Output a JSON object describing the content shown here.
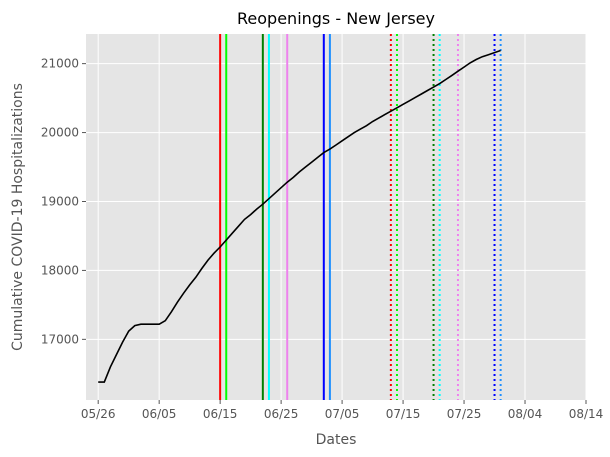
{
  "chart_data": {
    "type": "line",
    "title": "Reopenings - New Jersey",
    "xlabel": "Dates",
    "ylabel": "Cumulative COVID-19 Hospitalizations",
    "style": "ggplot",
    "grid": true,
    "x_axis": {
      "type": "date",
      "ticks": [
        "2020-05-26",
        "2020-06-05",
        "2020-06-15",
        "2020-06-25",
        "2020-07-05",
        "2020-07-15",
        "2020-07-25",
        "2020-08-04",
        "2020-08-14"
      ],
      "tick_labels": [
        "05/26",
        "06/05",
        "06/15",
        "06/25",
        "07/05",
        "07/15",
        "07/25",
        "08/04",
        "08/14"
      ],
      "range": [
        "2020-05-24",
        "2020-08-14"
      ]
    },
    "y_axis": {
      "ticks": [
        17000,
        18000,
        19000,
        20000,
        21000
      ],
      "tick_labels": [
        "17000",
        "18000",
        "19000",
        "20000",
        "21000"
      ],
      "range": [
        16120,
        21430
      ]
    },
    "series": [
      {
        "color": "#000000",
        "points": [
          [
            "2020-05-26",
            16380
          ],
          [
            "2020-05-27",
            16380
          ],
          [
            "2020-05-28",
            16600
          ],
          [
            "2020-05-29",
            16780
          ],
          [
            "2020-05-30",
            16960
          ],
          [
            "2020-05-31",
            17120
          ],
          [
            "2020-06-01",
            17200
          ],
          [
            "2020-06-02",
            17220
          ],
          [
            "2020-06-03",
            17220
          ],
          [
            "2020-06-04",
            17220
          ],
          [
            "2020-06-05",
            17220
          ],
          [
            "2020-06-06",
            17270
          ],
          [
            "2020-06-07",
            17400
          ],
          [
            "2020-06-08",
            17540
          ],
          [
            "2020-06-09",
            17670
          ],
          [
            "2020-06-10",
            17790
          ],
          [
            "2020-06-11",
            17900
          ],
          [
            "2020-06-12",
            18030
          ],
          [
            "2020-06-13",
            18150
          ],
          [
            "2020-06-14",
            18250
          ],
          [
            "2020-06-15",
            18340
          ],
          [
            "2020-06-16",
            18440
          ],
          [
            "2020-06-17",
            18540
          ],
          [
            "2020-06-18",
            18640
          ],
          [
            "2020-06-19",
            18740
          ],
          [
            "2020-06-20",
            18810
          ],
          [
            "2020-06-21",
            18890
          ],
          [
            "2020-06-22",
            18960
          ],
          [
            "2020-06-23",
            19040
          ],
          [
            "2020-06-24",
            19120
          ],
          [
            "2020-06-25",
            19200
          ],
          [
            "2020-06-26",
            19280
          ],
          [
            "2020-06-27",
            19350
          ],
          [
            "2020-06-28",
            19430
          ],
          [
            "2020-06-29",
            19500
          ],
          [
            "2020-06-30",
            19570
          ],
          [
            "2020-07-01",
            19640
          ],
          [
            "2020-07-02",
            19710
          ],
          [
            "2020-07-03",
            19760
          ],
          [
            "2020-07-04",
            19820
          ],
          [
            "2020-07-05",
            19880
          ],
          [
            "2020-07-06",
            19940
          ],
          [
            "2020-07-07",
            20000
          ],
          [
            "2020-07-08",
            20050
          ],
          [
            "2020-07-09",
            20100
          ],
          [
            "2020-07-10",
            20160
          ],
          [
            "2020-07-11",
            20210
          ],
          [
            "2020-07-12",
            20260
          ],
          [
            "2020-07-13",
            20310
          ],
          [
            "2020-07-14",
            20360
          ],
          [
            "2020-07-15",
            20410
          ],
          [
            "2020-07-16",
            20460
          ],
          [
            "2020-07-17",
            20510
          ],
          [
            "2020-07-18",
            20560
          ],
          [
            "2020-07-19",
            20610
          ],
          [
            "2020-07-20",
            20660
          ],
          [
            "2020-07-21",
            20710
          ],
          [
            "2020-07-22",
            20770
          ],
          [
            "2020-07-23",
            20830
          ],
          [
            "2020-07-24",
            20890
          ],
          [
            "2020-07-25",
            20950
          ],
          [
            "2020-07-26",
            21010
          ],
          [
            "2020-07-27",
            21060
          ],
          [
            "2020-07-28",
            21100
          ],
          [
            "2020-07-29",
            21130
          ],
          [
            "2020-07-30",
            21160
          ],
          [
            "2020-07-31",
            21190
          ]
        ]
      }
    ],
    "reference_lines": [
      {
        "date": "2020-06-15",
        "color": "#ff0000",
        "style": "solid"
      },
      {
        "date": "2020-06-16",
        "color": "#00ff00",
        "style": "solid"
      },
      {
        "date": "2020-06-22",
        "color": "#008000",
        "style": "solid"
      },
      {
        "date": "2020-06-23",
        "color": "#00ffff",
        "style": "solid"
      },
      {
        "date": "2020-06-26",
        "color": "#ee82ee",
        "style": "solid"
      },
      {
        "date": "2020-07-02",
        "color": "#0000ff",
        "style": "solid"
      },
      {
        "date": "2020-07-03",
        "color": "#1e90ff",
        "style": "solid"
      },
      {
        "date": "2020-07-13",
        "color": "#ff0000",
        "style": "dotted"
      },
      {
        "date": "2020-07-14",
        "color": "#00ff00",
        "style": "dotted"
      },
      {
        "date": "2020-07-20",
        "color": "#008000",
        "style": "dotted"
      },
      {
        "date": "2020-07-21",
        "color": "#00ffff",
        "style": "dotted"
      },
      {
        "date": "2020-07-24",
        "color": "#ee82ee",
        "style": "dotted"
      },
      {
        "date": "2020-07-30",
        "color": "#0000ff",
        "style": "dotted"
      },
      {
        "date": "2020-07-31",
        "color": "#1e90ff",
        "style": "dotted"
      }
    ]
  }
}
